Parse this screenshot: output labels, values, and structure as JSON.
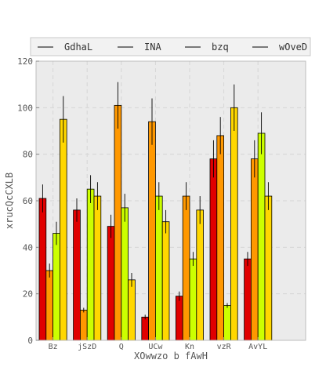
{
  "chart_data": {
    "type": "bar",
    "xlabel": "XOwwzo b fAwH",
    "ylabel": "xrucQcCXLB",
    "ylim": [
      0,
      120
    ],
    "yticks": [
      0,
      20,
      40,
      60,
      80,
      100,
      120
    ],
    "grid": true,
    "legend_position": "top",
    "categories": [
      "Bz",
      "jSzD",
      "Q",
      "UCw",
      "Kn",
      "vzR",
      "AvYL"
    ],
    "series": [
      {
        "name": "GdhaL",
        "color": "#e00000",
        "values": [
          61,
          56,
          49,
          10,
          19,
          78,
          35
        ],
        "errors": [
          6,
          5,
          5,
          1,
          2,
          8,
          3
        ]
      },
      {
        "name": "INA",
        "color": "#ff9800",
        "values": [
          30,
          13,
          101,
          94,
          62,
          88,
          78
        ],
        "errors": [
          3,
          1,
          10,
          10,
          6,
          8,
          8
        ]
      },
      {
        "name": "bzq",
        "color": "#ccff00",
        "values": [
          46,
          65,
          57,
          62,
          35,
          15,
          89
        ],
        "errors": [
          5,
          6,
          6,
          6,
          3,
          1,
          9
        ]
      },
      {
        "name": "wOveD",
        "color": "#ffd700",
        "values": [
          95,
          62,
          26,
          51,
          56,
          100,
          62
        ],
        "errors": [
          10,
          6,
          3,
          5,
          6,
          10,
          6
        ]
      }
    ]
  }
}
